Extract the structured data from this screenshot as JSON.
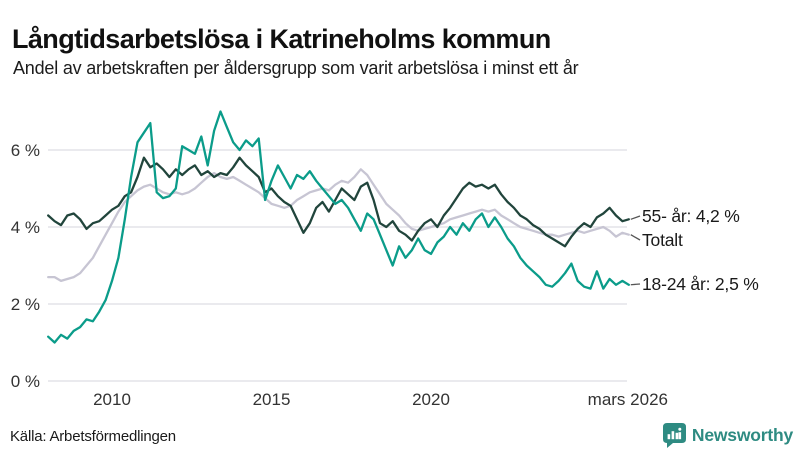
{
  "header": {
    "title": "Långtidsarbetslösa i Katrineholms kommun",
    "subtitle": "Andel av arbetskraften per åldersgrupp som varit arbetslösa i minst ett år"
  },
  "footer": {
    "source": "Källa: Arbetsförmedlingen",
    "brand": "Newsworthy",
    "brand_color": "#2e8b82"
  },
  "chart_data": {
    "type": "line",
    "title": "Långtidsarbetslösa i Katrineholms kommun",
    "xlabel": "",
    "ylabel": "Andel av arbetskraften (%)",
    "grid": true,
    "legend_position": "right-end-labels",
    "x_axis": {
      "range": [
        2008.0,
        2026.25
      ],
      "ticks": [
        {
          "label": "2010",
          "year": 2010
        },
        {
          "label": "2015",
          "year": 2015
        },
        {
          "label": "2020",
          "year": 2020
        },
        {
          "label": "mars 2026",
          "year": 2026.17
        }
      ]
    },
    "y_axis": {
      "range": [
        0,
        7.2
      ],
      "values": [
        0,
        2,
        4,
        6
      ],
      "labels": [
        "0 %",
        "2 %",
        "4 %",
        "6 %"
      ]
    },
    "series": [
      {
        "name": "Totalt",
        "label": "Totalt",
        "end_value": null,
        "color": "#c7c5d3",
        "x_start": 2008.0,
        "x_step": 0.2,
        "values": [
          2.7,
          2.7,
          2.6,
          2.65,
          2.7,
          2.8,
          3.0,
          3.2,
          3.5,
          3.8,
          4.1,
          4.4,
          4.65,
          4.8,
          4.95,
          5.05,
          5.1,
          5.0,
          4.9,
          4.85,
          4.9,
          4.85,
          4.9,
          5.0,
          5.15,
          5.3,
          5.4,
          5.3,
          5.25,
          5.3,
          5.2,
          5.1,
          5.0,
          4.9,
          4.75,
          4.6,
          4.55,
          4.5,
          4.55,
          4.7,
          4.8,
          4.9,
          4.95,
          5.0,
          4.95,
          5.1,
          5.2,
          5.15,
          5.3,
          5.5,
          5.35,
          5.1,
          4.85,
          4.6,
          4.45,
          4.3,
          4.1,
          3.95,
          3.9,
          3.95,
          4.0,
          4.05,
          4.1,
          4.2,
          4.25,
          4.3,
          4.35,
          4.4,
          4.45,
          4.4,
          4.45,
          4.3,
          4.2,
          4.1,
          4.0,
          3.95,
          3.9,
          3.85,
          3.8,
          3.8,
          3.75,
          3.8,
          3.85,
          3.9,
          3.85,
          3.9,
          3.95,
          4.0,
          3.9,
          3.75,
          3.85,
          3.8
        ]
      },
      {
        "name": "55- år",
        "label": "55- år: 4,2 %",
        "end_value": 4.2,
        "color": "#21453c",
        "x_start": 2008.0,
        "x_step": 0.2,
        "values": [
          4.3,
          4.15,
          4.05,
          4.3,
          4.35,
          4.2,
          3.95,
          4.1,
          4.15,
          4.3,
          4.45,
          4.55,
          4.8,
          4.9,
          5.3,
          5.8,
          5.55,
          5.65,
          5.5,
          5.3,
          5.5,
          5.35,
          5.5,
          5.6,
          5.35,
          5.45,
          5.3,
          5.4,
          5.35,
          5.55,
          5.8,
          5.6,
          5.45,
          5.3,
          4.9,
          5.0,
          4.8,
          4.65,
          4.55,
          4.2,
          3.85,
          4.1,
          4.5,
          4.65,
          4.4,
          4.7,
          5.0,
          4.85,
          4.7,
          5.05,
          5.15,
          4.7,
          4.1,
          4.0,
          4.15,
          3.9,
          3.8,
          3.65,
          3.9,
          4.1,
          4.2,
          4.0,
          4.3,
          4.5,
          4.75,
          5.0,
          5.15,
          5.05,
          5.1,
          5.0,
          5.1,
          4.85,
          4.65,
          4.5,
          4.3,
          4.2,
          4.05,
          3.95,
          3.8,
          3.7,
          3.6,
          3.5,
          3.75,
          3.95,
          4.1,
          4.0,
          4.25,
          4.35,
          4.5,
          4.3,
          4.15,
          4.2
        ]
      },
      {
        "name": "18-24 år",
        "label": "18-24 år: 2,5 %",
        "end_value": 2.5,
        "color": "#0b9c8a",
        "x_start": 2008.0,
        "x_step": 0.2,
        "values": [
          1.15,
          1.0,
          1.2,
          1.1,
          1.3,
          1.4,
          1.6,
          1.55,
          1.8,
          2.1,
          2.6,
          3.2,
          4.2,
          5.3,
          6.2,
          6.45,
          6.7,
          4.9,
          4.75,
          4.8,
          5.0,
          6.1,
          6.0,
          5.9,
          6.35,
          5.6,
          6.5,
          7.0,
          6.6,
          6.2,
          6.0,
          6.25,
          6.1,
          6.3,
          4.7,
          5.2,
          5.6,
          5.3,
          5.0,
          5.35,
          5.25,
          5.45,
          5.2,
          5.0,
          4.8,
          4.6,
          4.7,
          4.5,
          4.2,
          3.9,
          4.35,
          4.2,
          3.8,
          3.4,
          3.0,
          3.5,
          3.2,
          3.4,
          3.7,
          3.4,
          3.3,
          3.6,
          3.75,
          4.0,
          3.8,
          4.1,
          3.9,
          4.2,
          4.35,
          4.0,
          4.25,
          4.0,
          3.7,
          3.5,
          3.2,
          3.0,
          2.85,
          2.7,
          2.5,
          2.45,
          2.6,
          2.8,
          3.05,
          2.6,
          2.45,
          2.4,
          2.85,
          2.4,
          2.65,
          2.5,
          2.6,
          2.5
        ]
      }
    ]
  }
}
